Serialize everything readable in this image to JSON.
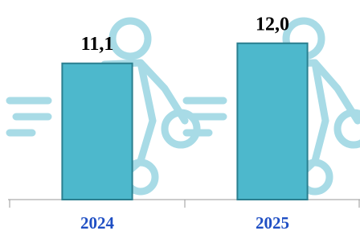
{
  "chart_data": {
    "type": "bar",
    "categories": [
      "2024",
      "2025"
    ],
    "values": [
      11.1,
      12.0
    ],
    "value_labels": [
      "11,1",
      "12,0"
    ],
    "color": "#4db8cc",
    "ylim": [
      5,
      13
    ]
  }
}
